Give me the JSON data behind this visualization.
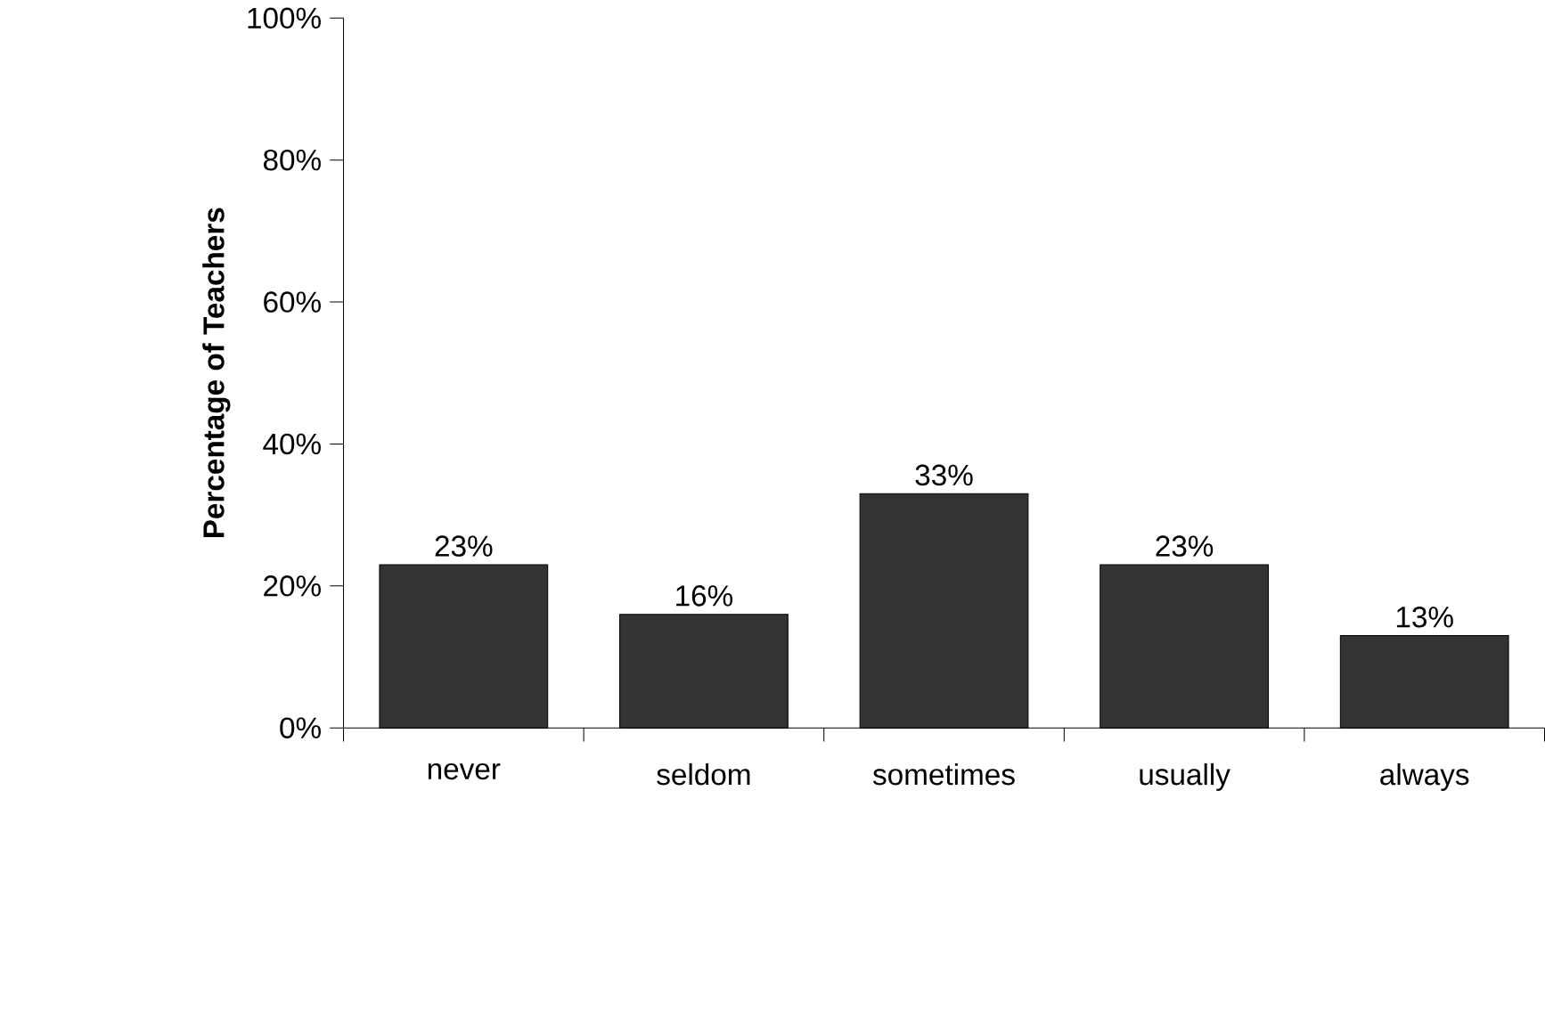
{
  "chart_data": {
    "type": "bar",
    "ylabel": "Percentage of Teachers",
    "categories": [
      "never",
      "seldom",
      "sometimes",
      "usually",
      "always"
    ],
    "values": [
      23,
      16,
      33,
      23,
      13
    ],
    "value_labels": [
      "23%",
      "16%",
      "33%",
      "23%",
      "13%"
    ],
    "color": "#333333",
    "ylim": [
      0,
      100
    ],
    "yticks": [
      {
        "value": 0,
        "label": "0%"
      },
      {
        "value": 20,
        "label": "20%"
      },
      {
        "value": 40,
        "label": "40%"
      },
      {
        "value": 60,
        "label": "60%"
      },
      {
        "value": 80,
        "label": "80%"
      },
      {
        "value": 100,
        "label": "100%"
      }
    ],
    "grid": false
  }
}
